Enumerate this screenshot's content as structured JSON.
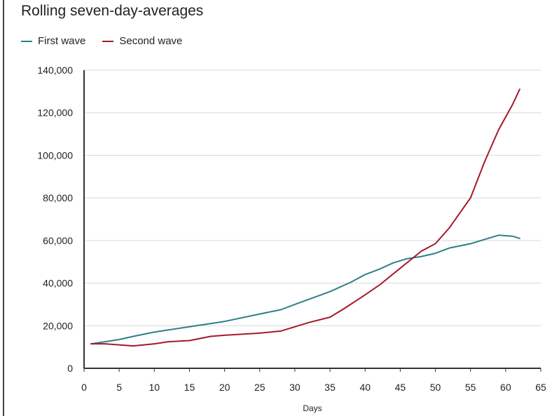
{
  "chart_data": {
    "type": "line",
    "title": "Rolling seven-day-averages",
    "xlabel": "Days",
    "ylabel": "",
    "xlim": [
      0,
      65
    ],
    "ylim": [
      0,
      140000
    ],
    "xticks": [
      0,
      5,
      10,
      15,
      20,
      25,
      30,
      35,
      40,
      45,
      50,
      55,
      60,
      65
    ],
    "yticks": [
      0,
      20000,
      40000,
      60000,
      80000,
      100000,
      120000,
      140000
    ],
    "ytick_labels": [
      "0",
      "20,000",
      "40,000",
      "60,000",
      "80,000",
      "100,000",
      "120,000",
      "140,000"
    ],
    "grid": "horizontal",
    "legend_position": "top-left",
    "series": [
      {
        "name": "First wave",
        "color": "#2e7f86",
        "x": [
          1,
          3,
          5,
          7,
          10,
          15,
          20,
          25,
          28,
          30,
          35,
          38,
          40,
          42,
          44,
          46,
          48,
          50,
          52,
          55,
          57,
          59,
          61,
          62
        ],
        "y": [
          11500,
          12500,
          13500,
          15000,
          17000,
          19500,
          22000,
          25500,
          27500,
          30000,
          36000,
          40500,
          44000,
          46500,
          49500,
          51500,
          52500,
          54000,
          56500,
          58500,
          60500,
          62500,
          62000,
          61000
        ]
      },
      {
        "name": "Second wave",
        "color": "#a31a2a",
        "x": [
          1,
          3,
          5,
          7,
          10,
          12,
          15,
          18,
          20,
          25,
          28,
          30,
          32,
          35,
          37,
          40,
          42,
          45,
          48,
          50,
          52,
          55,
          57,
          59,
          61,
          62
        ],
        "y": [
          11500,
          11500,
          11000,
          10500,
          11500,
          12500,
          13000,
          15000,
          15500,
          16500,
          17500,
          19500,
          21500,
          24000,
          28000,
          34500,
          39000,
          47000,
          55000,
          58500,
          66000,
          80000,
          97000,
          112000,
          124000,
          131000
        ]
      }
    ],
    "axis_color": "#333333",
    "grid_color": "#d9d9d9"
  }
}
